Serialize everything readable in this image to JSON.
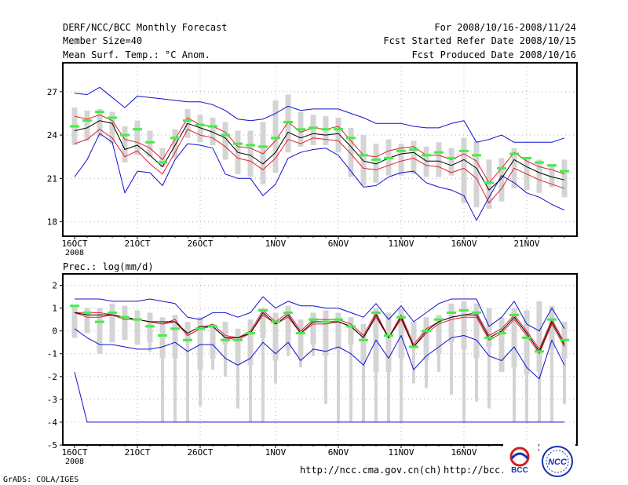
{
  "header": {
    "title": "DERF/NCC/BCC Monthly Forecast",
    "member_size": "Member Size=40",
    "variable": "Mean Surf. Temp.: °C Anom.",
    "period": "For 2008/10/16-2008/11/24",
    "fcst_started": "Fcst Started Refer Date 2008/10/15",
    "fcst_produced": "Fcst Produced Date 2008/10/16"
  },
  "footer": {
    "grads_credit": "GrADS: COLA/IGES",
    "url_left": "http://ncc.cma.gov.cn(ch)",
    "url_right": "http://bcc.c"
  },
  "logos": [
    {
      "text": "BCC",
      "color": "#1a2fb0"
    },
    {
      "text": "NCC",
      "color": "#1a2fb0"
    }
  ],
  "colors": {
    "box": "#d4d4d4",
    "mean_marker": "#44ee44",
    "envelope": "#1010d0",
    "spread": "#e02030",
    "ensemble_mean": "#000000"
  },
  "chart_data": [
    {
      "type": "box-ensemble",
      "title": "Mean Surf. Temp.: °C Anom.",
      "x_tick_labels": [
        "16OCT",
        "21OCT",
        "26OCT",
        "1NOV",
        "6NOV",
        "11NOV",
        "16NOV",
        "21NOV"
      ],
      "x_tick_days": [
        1,
        6,
        11,
        17,
        22,
        27,
        32,
        37
      ],
      "x_year_label": "2008",
      "ylim": [
        17,
        29
      ],
      "yticks": [
        18,
        21,
        24,
        27
      ],
      "days": [
        1,
        2,
        3,
        4,
        5,
        6,
        7,
        8,
        9,
        10,
        11,
        12,
        13,
        14,
        15,
        16,
        17,
        18,
        19,
        20,
        21,
        22,
        23,
        24,
        25,
        26,
        27,
        28,
        29,
        30,
        31,
        32,
        33,
        34,
        35,
        36,
        37,
        38,
        39,
        40
      ],
      "series": [
        {
          "name": "box_high",
          "values": [
            25.9,
            25.7,
            25.8,
            25.6,
            24.6,
            25.0,
            24.3,
            23.1,
            24.4,
            25.8,
            25.4,
            25.2,
            24.9,
            24.3,
            24.3,
            24.9,
            26.4,
            26.8,
            25.6,
            25.4,
            25.3,
            25.2,
            24.5,
            24.0,
            23.4,
            23.7,
            23.4,
            23.6,
            23.2,
            23.5,
            23.1,
            23.8,
            23.6,
            22.3,
            22.4,
            23.1,
            22.5,
            22.3,
            22.0,
            22.3
          ]
        },
        {
          "name": "box_low",
          "values": [
            23.3,
            23.6,
            23.9,
            23.4,
            22.1,
            22.6,
            22.5,
            21.8,
            22.4,
            23.8,
            23.5,
            23.3,
            22.3,
            21.3,
            21.1,
            20.6,
            21.4,
            22.8,
            23.2,
            23.3,
            23.3,
            22.8,
            21.1,
            20.5,
            20.7,
            21.2,
            21.2,
            21.3,
            21.1,
            21.1,
            21.2,
            19.3,
            19.0,
            18.9,
            19.4,
            20.3,
            20.2,
            20.0,
            20.4,
            19.7
          ]
        },
        {
          "name": "mean_marker",
          "values": [
            24.6,
            25.0,
            25.6,
            25.2,
            24.0,
            24.4,
            23.5,
            22.1,
            23.8,
            25.0,
            24.7,
            24.6,
            24.0,
            23.4,
            23.3,
            23.2,
            23.8,
            24.9,
            24.4,
            24.5,
            24.4,
            24.4,
            23.8,
            22.6,
            22.3,
            22.4,
            22.9,
            23.0,
            22.6,
            22.8,
            22.4,
            22.9,
            22.6,
            20.7,
            21.7,
            22.7,
            22.4,
            22.1,
            21.9,
            21.5
          ]
        },
        {
          "name": "upper_envelope",
          "values": [
            26.9,
            26.8,
            27.3,
            26.6,
            25.9,
            26.7,
            26.6,
            26.5,
            26.4,
            26.3,
            26.3,
            26.1,
            25.7,
            25.1,
            25.0,
            25.1,
            25.5,
            26.0,
            25.7,
            25.8,
            25.8,
            25.8,
            25.5,
            25.2,
            24.8,
            24.8,
            24.8,
            24.6,
            24.5,
            24.5,
            24.8,
            25.0,
            23.5,
            23.7,
            24.0,
            23.5,
            23.5,
            23.5,
            23.5,
            23.8
          ]
        },
        {
          "name": "spread_upper",
          "values": [
            25.3,
            25.1,
            25.4,
            25.0,
            23.7,
            23.5,
            23.1,
            22.3,
            23.7,
            25.2,
            24.7,
            24.6,
            24.2,
            23.2,
            23.1,
            22.7,
            23.6,
            24.9,
            24.2,
            24.5,
            24.4,
            24.6,
            23.6,
            22.6,
            22.5,
            22.9,
            23.1,
            23.2,
            22.6,
            22.6,
            22.3,
            22.7,
            22.2,
            20.7,
            21.7,
            22.8,
            22.2,
            21.8,
            21.6,
            21.3
          ]
        },
        {
          "name": "ensemble_mean",
          "values": [
            24.3,
            24.5,
            25.0,
            24.8,
            23.0,
            23.3,
            22.6,
            21.8,
            23.3,
            24.8,
            24.5,
            24.2,
            23.8,
            22.8,
            22.6,
            22.0,
            22.8,
            24.2,
            23.8,
            24.1,
            24.0,
            24.1,
            23.2,
            22.2,
            22.0,
            22.4,
            22.7,
            22.8,
            22.2,
            22.2,
            21.9,
            22.3,
            21.7,
            20.2,
            21.0,
            22.3,
            21.8,
            21.4,
            21.1,
            20.9
          ]
        },
        {
          "name": "spread_lower",
          "values": [
            23.4,
            23.7,
            24.4,
            23.8,
            22.5,
            22.9,
            22.0,
            21.3,
            22.8,
            24.4,
            24.0,
            23.8,
            23.2,
            22.4,
            22.2,
            21.6,
            22.4,
            23.7,
            23.4,
            23.8,
            23.7,
            23.6,
            22.7,
            21.7,
            21.6,
            21.9,
            22.2,
            22.4,
            21.9,
            21.8,
            21.4,
            21.7,
            21.0,
            19.3,
            20.3,
            21.7,
            21.3,
            20.9,
            20.6,
            20.3
          ]
        },
        {
          "name": "lower_envelope",
          "values": [
            21.1,
            22.3,
            24.1,
            23.5,
            20.0,
            21.5,
            21.4,
            20.5,
            22.3,
            23.4,
            23.3,
            23.1,
            21.3,
            21.0,
            21.0,
            19.8,
            20.6,
            22.4,
            22.8,
            23.0,
            23.1,
            22.6,
            21.5,
            20.4,
            20.5,
            21.1,
            21.4,
            21.5,
            20.7,
            20.4,
            20.2,
            19.8,
            18.1,
            19.7,
            21.2,
            20.7,
            20.0,
            19.7,
            19.2,
            18.8
          ]
        }
      ]
    },
    {
      "type": "box-ensemble",
      "title": "Prec.: log(mm/d)",
      "x_tick_labels": [
        "16OCT",
        "21OCT",
        "26OCT",
        "1NOV",
        "6NOV",
        "11NOV",
        "16NOV",
        "21NOV"
      ],
      "x_tick_days": [
        1,
        6,
        11,
        17,
        22,
        27,
        32,
        37
      ],
      "x_year_label": "2008",
      "ylim": [
        -5,
        2.5
      ],
      "yticks": [
        -5,
        -4,
        -3,
        -2,
        -1,
        0,
        1,
        2
      ],
      "days": [
        1,
        2,
        3,
        4,
        5,
        6,
        7,
        8,
        9,
        10,
        11,
        12,
        13,
        14,
        15,
        16,
        17,
        18,
        19,
        20,
        21,
        22,
        23,
        24,
        25,
        26,
        27,
        28,
        29,
        30,
        31,
        32,
        33,
        34,
        35,
        36,
        37,
        38,
        39,
        40
      ],
      "series": [
        {
          "name": "box_high",
          "values": [
            1.1,
            1.0,
            1.0,
            1.2,
            1.1,
            0.9,
            0.8,
            0.6,
            0.7,
            0.4,
            0.6,
            0.3,
            0.4,
            0.1,
            0.5,
            1.0,
            0.8,
            1.1,
            0.5,
            0.8,
            0.9,
            0.8,
            0.6,
            0.3,
            1.0,
            0.8,
            1.0,
            0.4,
            0.6,
            0.7,
            1.2,
            1.3,
            1.2,
            1.0,
            0.6,
            1.0,
            0.9,
            1.3,
            1.1,
            0.4
          ]
        },
        {
          "name": "box_low",
          "values": [
            -0.3,
            -0.1,
            -1.0,
            -0.5,
            -0.4,
            -0.6,
            -0.5,
            -1.2,
            -1.2,
            -0.5,
            -1.7,
            -1.2,
            -0.6,
            -1.5,
            -1.5,
            -0.3,
            -1.3,
            -0.8,
            -1.2,
            -0.6,
            -1.1,
            -0.8,
            -0.6,
            -1.4,
            -1.8,
            -1.8,
            -1.2,
            -0.7,
            -1.3,
            -1.0,
            -0.5,
            -0.8,
            -1.2,
            -0.7,
            -1.8,
            -1.6,
            -1.9,
            -1.8,
            -0.8,
            -1.2
          ]
        },
        {
          "name": "whisker_low",
          "values": [
            -0.3,
            -0.1,
            -1.0,
            -0.5,
            -0.4,
            -0.6,
            -0.9,
            -4.0,
            -4.0,
            -4.0,
            -3.3,
            -1.7,
            -2.0,
            -3.4,
            -4.0,
            -4.0,
            -2.3,
            -1.1,
            -1.6,
            -1.1,
            -3.2,
            -4.0,
            -4.0,
            -4.0,
            -4.0,
            -4.0,
            -4.0,
            -2.3,
            -2.5,
            -1.8,
            -2.8,
            -4.0,
            -3.1,
            -3.4,
            -1.8,
            -4.0,
            -4.0,
            -4.0,
            -4.0,
            -3.2
          ]
        },
        {
          "name": "mean_marker",
          "values": [
            1.1,
            0.8,
            0.4,
            0.8,
            0.6,
            0.5,
            0.2,
            -0.2,
            0.1,
            -0.4,
            0.1,
            0.2,
            -0.4,
            -0.4,
            -0.1,
            0.9,
            0.4,
            0.8,
            -0.1,
            0.5,
            0.4,
            0.5,
            0.2,
            -0.4,
            0.8,
            -0.2,
            0.6,
            -0.7,
            0.0,
            0.5,
            0.8,
            0.9,
            0.8,
            -0.3,
            -0.1,
            0.7,
            -0.3,
            -0.9,
            0.5,
            -0.4
          ]
        },
        {
          "name": "upper_envelope",
          "values": [
            1.4,
            1.4,
            1.4,
            1.3,
            1.3,
            1.3,
            1.4,
            1.3,
            1.2,
            0.6,
            0.5,
            0.8,
            0.8,
            0.6,
            0.8,
            1.5,
            1.0,
            1.3,
            1.1,
            1.1,
            1.0,
            1.0,
            0.8,
            0.6,
            1.2,
            0.5,
            1.1,
            0.4,
            0.8,
            1.2,
            1.4,
            1.4,
            1.4,
            0.2,
            0.6,
            1.3,
            0.3,
            0.0,
            1.0,
            0.1
          ]
        },
        {
          "name": "spread_upper",
          "values": [
            0.8,
            0.8,
            0.8,
            0.7,
            0.6,
            0.5,
            0.4,
            0.3,
            0.5,
            -0.2,
            0.1,
            0.3,
            -0.2,
            -0.3,
            0.0,
            0.9,
            0.4,
            0.8,
            0.0,
            0.5,
            0.5,
            0.5,
            0.3,
            -0.2,
            0.8,
            -0.3,
            0.7,
            -0.6,
            0.1,
            0.4,
            0.6,
            0.7,
            0.8,
            -0.2,
            0.1,
            0.7,
            0.0,
            -0.8,
            0.5,
            -0.5
          ]
        },
        {
          "name": "ensemble_mean",
          "values": [
            0.8,
            0.7,
            0.7,
            0.7,
            0.6,
            0.5,
            0.4,
            0.4,
            0.4,
            -0.1,
            0.2,
            0.2,
            -0.3,
            -0.3,
            -0.1,
            0.8,
            0.3,
            0.7,
            -0.1,
            0.4,
            0.4,
            0.4,
            0.2,
            -0.3,
            0.7,
            -0.3,
            0.6,
            -0.7,
            0.0,
            0.4,
            0.6,
            0.7,
            0.7,
            -0.3,
            0.0,
            0.6,
            -0.1,
            -0.9,
            0.4,
            -0.6
          ]
        },
        {
          "name": "spread_lower",
          "values": [
            0.8,
            0.6,
            0.6,
            0.7,
            0.5,
            0.5,
            0.4,
            0.3,
            0.4,
            -0.2,
            0.1,
            0.2,
            -0.3,
            -0.4,
            -0.1,
            0.7,
            0.3,
            0.6,
            -0.1,
            0.3,
            0.3,
            0.4,
            0.2,
            -0.3,
            0.6,
            -0.3,
            0.5,
            -0.7,
            -0.1,
            0.3,
            0.5,
            0.6,
            0.6,
            -0.4,
            -0.1,
            0.5,
            -0.2,
            -1.0,
            0.3,
            -0.7
          ]
        },
        {
          "name": "lower_envelope",
          "values": [
            0.1,
            -0.3,
            -0.6,
            -0.6,
            -0.7,
            -0.8,
            -0.8,
            -0.7,
            -0.5,
            -0.9,
            -0.6,
            -0.6,
            -1.2,
            -1.5,
            -1.2,
            -0.5,
            -1.0,
            -0.5,
            -1.3,
            -0.8,
            -0.9,
            -0.7,
            -1.0,
            -1.5,
            -0.4,
            -1.2,
            -0.2,
            -1.7,
            -1.1,
            -0.7,
            -0.3,
            -0.2,
            -0.4,
            -1.1,
            -1.3,
            -0.7,
            -1.6,
            -2.1,
            -0.4,
            -1.5
          ]
        },
        {
          "name": "blue_floor",
          "values": [
            -1.8,
            -4.0,
            -4.0,
            -4.0,
            -4.0,
            -4.0,
            -4.0,
            -4.0,
            -4.0,
            -4.0,
            -4.0,
            -4.0,
            -4.0,
            -4.0,
            -4.0,
            -4.0,
            -4.0,
            -4.0,
            -4.0,
            -4.0,
            -4.0,
            -4.0,
            -4.0,
            -4.0,
            -4.0,
            -4.0,
            -4.0,
            -4.0,
            -4.0,
            -4.0,
            -4.0,
            -4.0,
            -4.0,
            -4.0,
            -4.0,
            -4.0,
            -4.0,
            -4.0,
            -4.0,
            -4.0
          ]
        }
      ]
    }
  ]
}
